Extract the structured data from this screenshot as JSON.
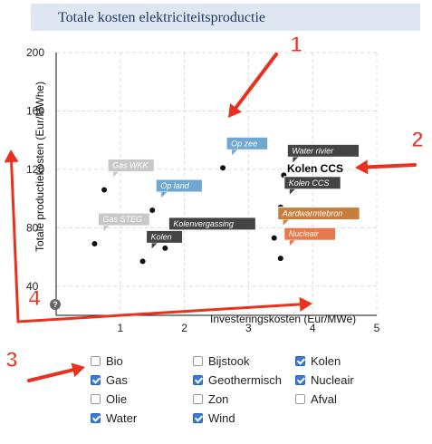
{
  "title": "Totale kosten elektriciteitsproductie",
  "chart_data": {
    "type": "scatter",
    "xlabel": "Investeringskosten (Eur/MWe)",
    "ylabel": "Totale productiekosten (Eur/MWhe)",
    "xlim": [
      0,
      5
    ],
    "ylim": [
      20,
      200
    ],
    "xticks": [
      1,
      2,
      3,
      4,
      5
    ],
    "yticks": [
      40,
      80,
      120,
      160,
      200
    ],
    "grid": true,
    "points": [
      {
        "name": "Gas WKK",
        "x": 0.75,
        "y": 106,
        "color": "#c8c8c8"
      },
      {
        "name": "Op land",
        "x": 1.5,
        "y": 92,
        "color": "#6fa7d0"
      },
      {
        "name": "Gas STEG",
        "x": 0.6,
        "y": 69,
        "color": "#c8c8c8"
      },
      {
        "name": "Kolenvergassing",
        "x": 1.7,
        "y": 66,
        "color": "#444444"
      },
      {
        "name": "Kolen",
        "x": 1.35,
        "y": 57,
        "color": "#444444"
      },
      {
        "name": "Op zee",
        "x": 2.6,
        "y": 121,
        "color": "#6fa7d0"
      },
      {
        "name": "Water rivier",
        "x": 3.55,
        "y": 116,
        "color": "#444444"
      },
      {
        "name": "Kolen CCS",
        "x": 3.5,
        "y": 94,
        "color": "#444444"
      },
      {
        "name": "Aardwarmtebron",
        "x": 3.4,
        "y": 73,
        "color": "#c77d3c"
      },
      {
        "name": "Nucleair",
        "x": 3.5,
        "y": 59,
        "color": "#e8794b"
      }
    ]
  },
  "overlay": {
    "kolen_ccs_large": "Kolen CCS",
    "help": "?",
    "markers": [
      "1",
      "2",
      "3",
      "4"
    ]
  },
  "legend": [
    {
      "label": "Bio",
      "checked": false
    },
    {
      "label": "Gas",
      "checked": true
    },
    {
      "label": "Olie",
      "checked": false
    },
    {
      "label": "Water",
      "checked": true
    },
    {
      "label": "Bijstook",
      "checked": false
    },
    {
      "label": "Geothermisch",
      "checked": true
    },
    {
      "label": "Zon",
      "checked": false
    },
    {
      "label": "Wind",
      "checked": true
    },
    {
      "label": "Kolen",
      "checked": true
    },
    {
      "label": "Nucleair",
      "checked": true
    },
    {
      "label": "Afval",
      "checked": false
    }
  ]
}
